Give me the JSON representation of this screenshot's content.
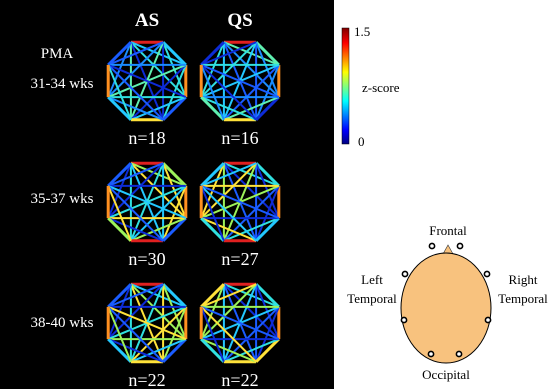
{
  "headers": {
    "col1": "AS",
    "col2": "QS",
    "pma": "PMA"
  },
  "rows": [
    {
      "label": "31-34 wks",
      "as_n": "n=18",
      "qs_n": "n=16"
    },
    {
      "label": "35-37 wks",
      "as_n": "n=30",
      "qs_n": "n=27"
    },
    {
      "label": "38-40 wks",
      "as_n": "n=22",
      "qs_n": "n=22"
    }
  ],
  "colorbar": {
    "max": "1.5",
    "min": "0",
    "label": "z-score"
  },
  "head_map": {
    "frontal": "Frontal",
    "occipital": "Occipital",
    "left": [
      "Left",
      "Temporal"
    ],
    "right": [
      "Right",
      "Temporal"
    ]
  }
}
